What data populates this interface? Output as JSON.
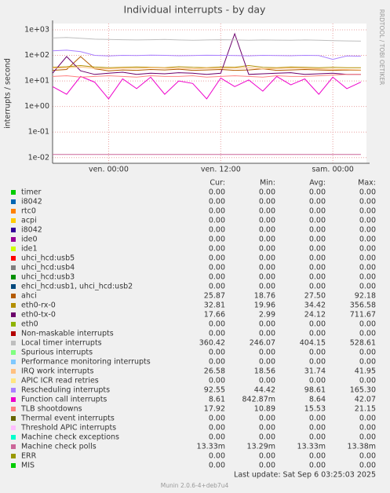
{
  "chart_data": {
    "type": "line",
    "title": "Individual interrupts - by day",
    "y_label": "interrupts / second",
    "side_text": "RRDTOOL / TOBI OETIKER",
    "log_y": true,
    "grid": true,
    "ylim": [
      0.006,
      1760
    ],
    "yticks": [
      {
        "value": 0.01,
        "label": "1e-02"
      },
      {
        "value": 0.1,
        "label": "1e-01"
      },
      {
        "value": 1,
        "label": "1e+00"
      },
      {
        "value": 10,
        "label": "1e+01"
      },
      {
        "value": 100,
        "label": "1e+02"
      },
      {
        "value": 1000,
        "label": "1e+03"
      }
    ],
    "xlim": [
      -6,
      27.6
    ],
    "xticks": [
      {
        "value": 0,
        "label": "ven. 00:00"
      },
      {
        "value": 12,
        "label": "ven. 12:00"
      },
      {
        "value": 24,
        "label": "sam. 00:00"
      }
    ],
    "x": [
      -6,
      -4.5,
      -3,
      -1.5,
      0,
      1.5,
      3,
      4.5,
      6,
      7.5,
      9,
      10.5,
      12,
      13.5,
      15,
      16.5,
      18,
      19.5,
      21,
      22.5,
      24,
      25.5,
      27
    ],
    "stat_headers": {
      "cur": "Cur:",
      "min": "Min:",
      "avg": "Avg:",
      "max": "Max:"
    },
    "series": [
      {
        "name": "timer",
        "color": "#00cc00",
        "stats": {
          "cur": "0.00",
          "min": "0.00",
          "avg": "0.00",
          "max": "0.00"
        }
      },
      {
        "name": "i8042",
        "color": "#0066b3",
        "stats": {
          "cur": "0.00",
          "min": "0.00",
          "avg": "0.00",
          "max": "0.00"
        }
      },
      {
        "name": "rtc0",
        "color": "#ff8000",
        "stats": {
          "cur": "0.00",
          "min": "0.00",
          "avg": "0.00",
          "max": "0.00"
        }
      },
      {
        "name": "acpi",
        "color": "#ffcc00",
        "stats": {
          "cur": "0.00",
          "min": "0.00",
          "avg": "0.00",
          "max": "0.00"
        }
      },
      {
        "name": "i8042",
        "color": "#330099",
        "stats": {
          "cur": "0.00",
          "min": "0.00",
          "avg": "0.00",
          "max": "0.00"
        }
      },
      {
        "name": "ide0",
        "color": "#990099",
        "stats": {
          "cur": "0.00",
          "min": "0.00",
          "avg": "0.00",
          "max": "0.00"
        }
      },
      {
        "name": "ide1",
        "color": "#ccff00",
        "stats": {
          "cur": "0.00",
          "min": "0.00",
          "avg": "0.00",
          "max": "0.00"
        }
      },
      {
        "name": "uhci_hcd:usb5",
        "color": "#ff0000",
        "stats": {
          "cur": "0.00",
          "min": "0.00",
          "avg": "0.00",
          "max": "0.00"
        }
      },
      {
        "name": "uhci_hcd:usb4",
        "color": "#808080",
        "stats": {
          "cur": "0.00",
          "min": "0.00",
          "avg": "0.00",
          "max": "0.00"
        }
      },
      {
        "name": "uhci_hcd:usb3",
        "color": "#008f00",
        "stats": {
          "cur": "0.00",
          "min": "0.00",
          "avg": "0.00",
          "max": "0.00"
        }
      },
      {
        "name": "ehci_hcd:usb1, uhci_hcd:usb2",
        "color": "#00487d",
        "stats": {
          "cur": "0.00",
          "min": "0.00",
          "avg": "0.00",
          "max": "0.00"
        }
      },
      {
        "name": "ahci",
        "color": "#b35a00",
        "stats": {
          "cur": "25.87",
          "min": "18.76",
          "avg": "27.50",
          "max": "92.18"
        },
        "values": [
          26,
          28,
          90,
          30,
          25,
          27,
          26,
          28,
          27,
          29,
          26,
          27,
          28,
          26,
          27,
          30,
          26,
          27,
          28,
          27,
          26,
          27,
          26
        ]
      },
      {
        "name": "eth0-rx-0",
        "color": "#b38f00",
        "stats": {
          "cur": "32.81",
          "min": "19.96",
          "avg": "34.42",
          "max": "356.58"
        },
        "values": [
          34,
          36,
          40,
          35,
          33,
          34,
          35,
          34,
          33,
          36,
          34,
          33,
          35,
          34,
          40,
          34,
          33,
          35,
          34,
          33,
          34,
          33,
          33
        ]
      },
      {
        "name": "eth0-tx-0",
        "color": "#6b006b",
        "stats": {
          "cur": "17.66",
          "min": "2.99",
          "avg": "24.12",
          "max": "711.67"
        },
        "values": [
          20,
          90,
          25,
          18,
          20,
          22,
          18,
          20,
          19,
          21,
          20,
          18,
          20,
          700,
          18,
          19,
          20,
          21,
          18,
          19,
          20,
          18,
          18
        ]
      },
      {
        "name": "eth0",
        "color": "#8fb300",
        "stats": {
          "cur": "0.00",
          "min": "0.00",
          "avg": "0.00",
          "max": "0.00"
        }
      },
      {
        "name": "Non-maskable interrupts",
        "color": "#b30000",
        "stats": {
          "cur": "0.00",
          "min": "0.00",
          "avg": "0.00",
          "max": "0.00"
        }
      },
      {
        "name": "Local timer interrupts",
        "color": "#bebebe",
        "stats": {
          "cur": "360.42",
          "min": "246.07",
          "avg": "404.15",
          "max": "528.61"
        },
        "values": [
          480,
          500,
          470,
          430,
          420,
          410,
          400,
          410,
          420,
          400,
          390,
          400,
          410,
          400,
          390,
          400,
          395,
          390,
          400,
          390,
          380,
          370,
          360
        ]
      },
      {
        "name": "Spurious interrupts",
        "color": "#80ff80",
        "stats": {
          "cur": "0.00",
          "min": "0.00",
          "avg": "0.00",
          "max": "0.00"
        }
      },
      {
        "name": "Performance monitoring interrupts",
        "color": "#80c9ff",
        "stats": {
          "cur": "0.00",
          "min": "0.00",
          "avg": "0.00",
          "max": "0.00"
        }
      },
      {
        "name": "IRQ work interrupts",
        "color": "#ffc080",
        "stats": {
          "cur": "26.58",
          "min": "18.56",
          "avg": "31.74",
          "max": "41.95"
        },
        "values": [
          32,
          33,
          35,
          31,
          30,
          32,
          31,
          33,
          32,
          31,
          30,
          32,
          31,
          32,
          33,
          30,
          31,
          32,
          31,
          30,
          29,
          28,
          27
        ]
      },
      {
        "name": "APIC ICR read retries",
        "color": "#ffe680",
        "stats": {
          "cur": "0.00",
          "min": "0.00",
          "avg": "0.00",
          "max": "0.00"
        }
      },
      {
        "name": "Rescheduling interrupts",
        "color": "#aa80ff",
        "stats": {
          "cur": "92.55",
          "min": "44.42",
          "avg": "98.61",
          "max": "165.30"
        },
        "values": [
          150,
          160,
          140,
          100,
          95,
          100,
          98,
          102,
          100,
          97,
          99,
          101,
          100,
          98,
          96,
          100,
          99,
          97,
          100,
          98,
          70,
          95,
          93
        ]
      },
      {
        "name": "Function call interrupts",
        "color": "#ee00cc",
        "stats": {
          "cur": "8.61",
          "min": "842.87m",
          "avg": "8.64",
          "max": "42.07"
        },
        "values": [
          6,
          3,
          15,
          9,
          2,
          12,
          5,
          14,
          3,
          10,
          8,
          2,
          13,
          6,
          11,
          4,
          15,
          7,
          12,
          3,
          14,
          5,
          9
        ]
      },
      {
        "name": "TLB shootdowns",
        "color": "#ff8080",
        "stats": {
          "cur": "17.92",
          "min": "10.89",
          "avg": "15.53",
          "max": "21.15"
        },
        "values": [
          15,
          16,
          14,
          15,
          16,
          15,
          14,
          16,
          15,
          15,
          16,
          14,
          15,
          16,
          15,
          14,
          16,
          15,
          15,
          16,
          17,
          18,
          18
        ]
      },
      {
        "name": "Thermal event interrupts",
        "color": "#666600",
        "stats": {
          "cur": "0.00",
          "min": "0.00",
          "avg": "0.00",
          "max": "0.00"
        }
      },
      {
        "name": "Threshold APIC interrupts",
        "color": "#ffbfff",
        "stats": {
          "cur": "0.00",
          "min": "0.00",
          "avg": "0.00",
          "max": "0.00"
        }
      },
      {
        "name": "Machine check exceptions",
        "color": "#00ffcc",
        "stats": {
          "cur": "0.00",
          "min": "0.00",
          "avg": "0.00",
          "max": "0.00"
        }
      },
      {
        "name": "Machine check polls",
        "color": "#cc6699",
        "stats": {
          "cur": "13.33m",
          "min": "13.29m",
          "avg": "13.33m",
          "max": "13.38m"
        },
        "values": [
          0.0133,
          0.0133,
          0.0133,
          0.0133,
          0.0133,
          0.0133,
          0.0133,
          0.0133,
          0.0133,
          0.0133,
          0.0133,
          0.0133,
          0.0133,
          0.0133,
          0.0133,
          0.0133,
          0.0133,
          0.0133,
          0.0133,
          0.0133,
          0.0133,
          0.0133,
          0.0133
        ]
      },
      {
        "name": "ERR",
        "color": "#999900",
        "stats": {
          "cur": "0.00",
          "min": "0.00",
          "avg": "0.00",
          "max": "0.00"
        }
      },
      {
        "name": "MIS",
        "color": "#00cc00",
        "stats": {
          "cur": "0.00",
          "min": "0.00",
          "avg": "0.00",
          "max": "0.00"
        }
      }
    ],
    "last_update": "Last update:  Sat Sep  6 03:25:03 2025",
    "footer": "Munin 2.0.6-4+deb7u4"
  }
}
